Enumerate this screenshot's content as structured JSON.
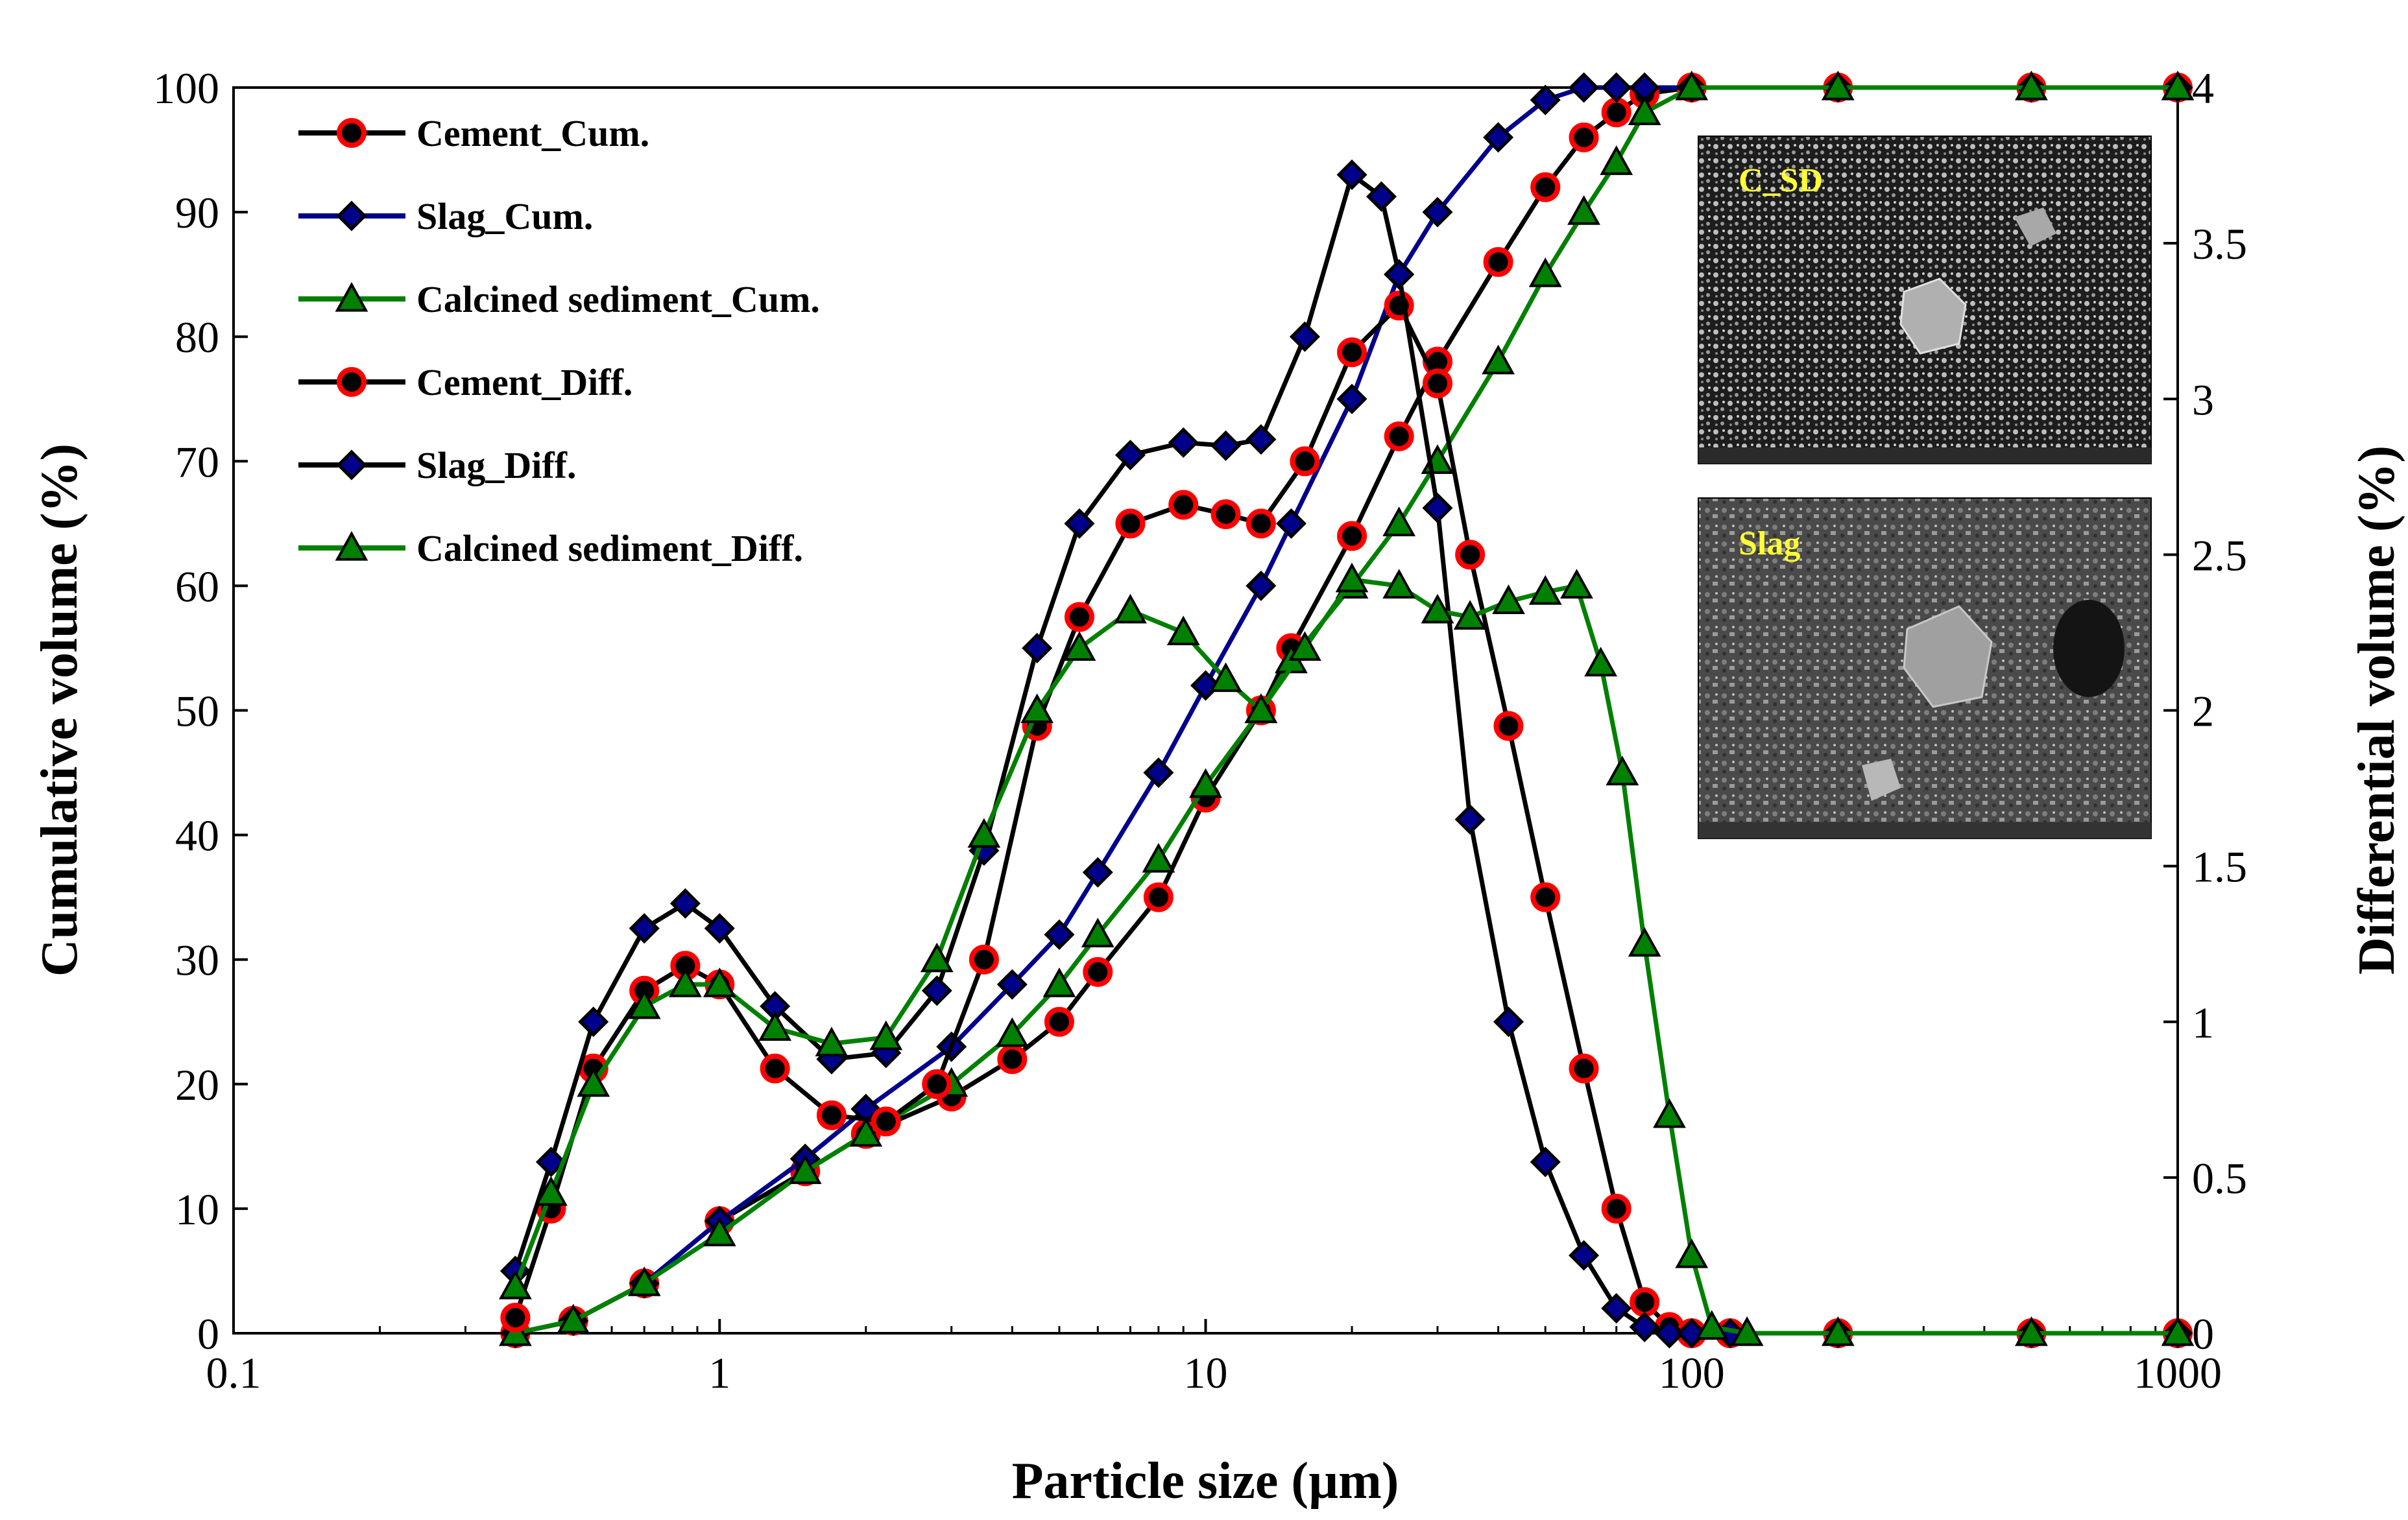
{
  "chart_data": {
    "type": "line",
    "title": "",
    "xlabel": "Particle size (µm)",
    "ylabel": "Cumulative volume (%)",
    "y2label": "Differential volume (%)",
    "xscale": "log",
    "xlim": [
      0.1,
      1000
    ],
    "ylim": [
      0,
      100
    ],
    "y2lim": [
      0,
      4
    ],
    "x_ticks": [
      0.1,
      1,
      10,
      100,
      1000
    ],
    "x_tick_labels": [
      "0.1",
      "1",
      "10",
      "100",
      "1000"
    ],
    "y_ticks": [
      0,
      10,
      20,
      30,
      40,
      50,
      60,
      70,
      80,
      90,
      100
    ],
    "y_tick_labels": [
      "0",
      "10",
      "20",
      "30",
      "40",
      "50",
      "60",
      "70",
      "80",
      "90",
      "100"
    ],
    "y2_ticks": [
      0,
      0.5,
      1,
      1.5,
      2,
      2.5,
      3,
      3.5,
      4
    ],
    "y2_tick_labels": [
      "0",
      "0.5",
      "1",
      "1.5",
      "2",
      "2.5",
      "3",
      "3.5",
      "4"
    ],
    "grid": false,
    "legend_position": "top-left",
    "series": [
      {
        "name": "Cement_Cum.",
        "axis": "left",
        "line_color": "#000000",
        "marker": "circle",
        "marker_fill": "#000000",
        "marker_edge": "#ff0000",
        "x": [
          0.38,
          0.5,
          0.7,
          1,
          1.5,
          2,
          3,
          4,
          5,
          6,
          8,
          10,
          13,
          15,
          20,
          25,
          30,
          40,
          50,
          60,
          70,
          80,
          100,
          200,
          500,
          1000
        ],
        "y": [
          0,
          1,
          4,
          9,
          13,
          16,
          19,
          22,
          25,
          29,
          35,
          43,
          50,
          55,
          64,
          72,
          78,
          86,
          92,
          96,
          98,
          99.5,
          100,
          100,
          100,
          100
        ]
      },
      {
        "name": "Slag_Cum.",
        "axis": "left",
        "line_color": "#00008b",
        "marker": "diamond",
        "marker_fill": "#00008b",
        "marker_edge": "#000000",
        "x": [
          0.38,
          0.5,
          0.7,
          1,
          1.5,
          2,
          3,
          4,
          5,
          6,
          8,
          10,
          13,
          15,
          20,
          25,
          30,
          40,
          50,
          60,
          70,
          80,
          100,
          200,
          500,
          1000
        ],
        "y": [
          0,
          1,
          4,
          9,
          14,
          18,
          23,
          28,
          32,
          37,
          45,
          52,
          60,
          65,
          75,
          85,
          90,
          96,
          99,
          100,
          100,
          100,
          100,
          100,
          100,
          100
        ]
      },
      {
        "name": "Calcined sediment_Cum.",
        "axis": "left",
        "line_color": "#008000",
        "marker": "triangle",
        "marker_fill": "#008000",
        "marker_edge": "#000000",
        "x": [
          0.38,
          0.5,
          0.7,
          1,
          1.5,
          2,
          3,
          4,
          5,
          6,
          8,
          10,
          13,
          15,
          20,
          25,
          30,
          40,
          50,
          60,
          70,
          80,
          100,
          200,
          500,
          1000
        ],
        "y": [
          0,
          1,
          4,
          8,
          13,
          16,
          20,
          24,
          28,
          32,
          38,
          44,
          50,
          54,
          60,
          65,
          70,
          78,
          85,
          90,
          94,
          98,
          100,
          100,
          100,
          100
        ]
      },
      {
        "name": "Cement_Diff.",
        "axis": "right",
        "line_color": "#000000",
        "marker": "circle",
        "marker_fill": "#000000",
        "marker_edge": "#ff0000",
        "x": [
          0.38,
          0.45,
          0.55,
          0.7,
          0.85,
          1,
          1.3,
          1.7,
          2.2,
          2.8,
          3.5,
          4.5,
          5.5,
          7,
          9,
          11,
          13,
          16,
          20,
          25,
          30,
          35,
          42,
          50,
          60,
          70,
          80,
          90,
          100,
          120,
          200,
          500,
          1000
        ],
        "y": [
          0.05,
          0.4,
          0.85,
          1.1,
          1.18,
          1.12,
          0.85,
          0.7,
          0.68,
          0.8,
          1.2,
          1.95,
          2.3,
          2.6,
          2.66,
          2.63,
          2.6,
          2.8,
          3.15,
          3.3,
          3.05,
          2.5,
          1.95,
          1.4,
          0.85,
          0.4,
          0.1,
          0.02,
          0,
          0,
          0,
          0,
          0
        ]
      },
      {
        "name": "Slag_Diff.",
        "axis": "right",
        "line_color": "#000000",
        "marker": "diamond",
        "marker_fill": "#00008b",
        "marker_edge": "#000000",
        "x": [
          0.38,
          0.45,
          0.55,
          0.7,
          0.85,
          1,
          1.3,
          1.7,
          2.2,
          2.8,
          3.5,
          4.5,
          5.5,
          7,
          9,
          11,
          13,
          16,
          20,
          23,
          25,
          30,
          35,
          42,
          50,
          60,
          70,
          80,
          90,
          100,
          120,
          200,
          500,
          1000
        ],
        "y": [
          0.2,
          0.55,
          1.0,
          1.3,
          1.38,
          1.3,
          1.05,
          0.88,
          0.9,
          1.1,
          1.55,
          2.2,
          2.6,
          2.82,
          2.86,
          2.85,
          2.87,
          3.2,
          3.72,
          3.65,
          3.4,
          2.65,
          1.65,
          1.0,
          0.55,
          0.25,
          0.08,
          0.02,
          0,
          0,
          0,
          0,
          0,
          0
        ]
      },
      {
        "name": "Calcined sediment_Diff.",
        "axis": "right",
        "line_color": "#008000",
        "marker": "triangle",
        "marker_fill": "#008000",
        "marker_edge": "#000000",
        "x": [
          0.38,
          0.45,
          0.55,
          0.7,
          0.85,
          1,
          1.3,
          1.7,
          2.2,
          2.8,
          3.5,
          4.5,
          5.5,
          7,
          9,
          11,
          13,
          16,
          20,
          25,
          30,
          35,
          42,
          50,
          58,
          65,
          72,
          80,
          90,
          100,
          110,
          130,
          200,
          500,
          1000
        ],
        "y": [
          0.15,
          0.45,
          0.8,
          1.05,
          1.12,
          1.12,
          0.98,
          0.93,
          0.95,
          1.2,
          1.6,
          2.0,
          2.2,
          2.32,
          2.25,
          2.1,
          2.0,
          2.2,
          2.42,
          2.4,
          2.32,
          2.3,
          2.35,
          2.38,
          2.4,
          2.15,
          1.8,
          1.25,
          0.7,
          0.25,
          0.02,
          0,
          0,
          0,
          0
        ]
      }
    ],
    "insets": [
      {
        "name": "C_SD",
        "label": "C_SD"
      },
      {
        "name": "Slag",
        "label": "Slag"
      }
    ]
  }
}
